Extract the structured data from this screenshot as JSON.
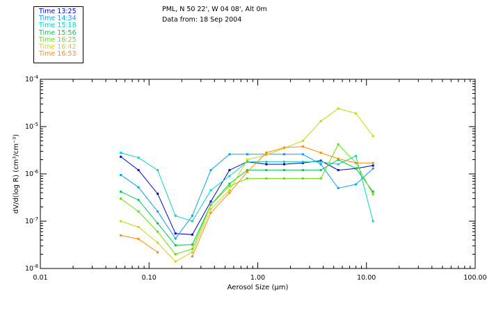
{
  "header": {
    "line1": "PML, N 50 22', W 04 08', Alt 0m",
    "line2": "Data from: 18 Sep 2004"
  },
  "chart_data": {
    "type": "line",
    "xlabel": "Aerosol Size (μm)",
    "ylabel": "dV/d(log R) (cm³/cm⁻³)",
    "xscale": "log",
    "yscale": "log",
    "xlim": [
      0.01,
      100
    ],
    "ylim": [
      1e-08,
      0.0001
    ],
    "x_ticks": [
      0.01,
      0.1,
      1,
      10,
      100
    ],
    "x_tick_labels": [
      "0.01",
      "0.10",
      "1.00",
      "10.00",
      "100.00"
    ],
    "y_ticks": [
      1e-08,
      1e-07,
      1e-06,
      1e-05,
      0.0001
    ],
    "y_tick_labels": [
      {
        "base": "10",
        "exp": "-8"
      },
      {
        "base": "10",
        "exp": "-7"
      },
      {
        "base": "10",
        "exp": "-6"
      },
      {
        "base": "10",
        "exp": "-5"
      },
      {
        "base": "10",
        "exp": "-4"
      }
    ],
    "grid": false,
    "legend_position": "top-left",
    "x": [
      0.055,
      0.08,
      0.12,
      0.175,
      0.25,
      0.37,
      0.55,
      0.8,
      1.2,
      1.75,
      2.6,
      3.8,
      5.5,
      8.0,
      11.5
    ],
    "series": [
      {
        "name": "Time 13:25",
        "color": "#0000c8",
        "values": [
          2.3e-06,
          1.2e-06,
          3.8e-07,
          5.5e-08,
          5.2e-08,
          2.6e-07,
          1.2e-06,
          1.8e-06,
          1.6e-06,
          1.6e-06,
          1.7e-06,
          1.9e-06,
          1.2e-06,
          1.3e-06,
          1.5e-06
        ]
      },
      {
        "name": "Time 14:34",
        "color": "#00a0ff",
        "values": [
          9.5e-07,
          5.2e-07,
          1.6e-07,
          4.3e-08,
          1.3e-07,
          1.2e-06,
          2.6e-06,
          2.6e-06,
          2.6e-06,
          2.6e-06,
          2.6e-06,
          1.6e-06,
          5e-07,
          6e-07,
          1.3e-06
        ]
      },
      {
        "name": "Time 15:18",
        "color": "#00d8c0",
        "values": [
          2.8e-06,
          2.2e-06,
          1.2e-06,
          1.3e-07,
          1e-07,
          4.5e-07,
          9e-07,
          1.8e-06,
          1.8e-06,
          1.8e-06,
          1.8e-06,
          1.8e-06,
          1.6e-06,
          2.4e-06,
          1e-07
        ]
      },
      {
        "name": "Time 15:56",
        "color": "#00c850",
        "values": [
          4.2e-07,
          2.8e-07,
          9e-08,
          3.1e-08,
          3.2e-08,
          2.2e-07,
          6.2e-07,
          1.2e-06,
          1.2e-06,
          1.2e-06,
          1.2e-06,
          1.2e-06,
          2e-06,
          1.3e-06,
          4.2e-07
        ]
      },
      {
        "name": "Time 16:25",
        "color": "#60e000",
        "values": [
          3e-07,
          1.6e-07,
          6e-08,
          2e-08,
          2.6e-08,
          2.2e-07,
          5.5e-07,
          8e-07,
          8e-07,
          8e-07,
          8e-07,
          8e-07,
          4.2e-06,
          1.7e-06,
          3.7e-07
        ]
      },
      {
        "name": "Time 16:42",
        "color": "#c8d800",
        "values": [
          1e-07,
          7.5e-08,
          3.5e-08,
          1.4e-08,
          2.2e-08,
          1.8e-07,
          4.5e-07,
          2e-06,
          2.5e-06,
          3.5e-06,
          5e-06,
          1.3e-05,
          2.4e-05,
          1.9e-05,
          6.3e-06
        ]
      },
      {
        "name": "Time 16:53",
        "color": "#ff8c00",
        "values": [
          5e-08,
          4.2e-08,
          2.2e-08,
          null,
          1.8e-08,
          1.5e-07,
          4e-07,
          1.1e-06,
          2.8e-06,
          3.6e-06,
          3.8e-06,
          2.8e-06,
          2.1e-06,
          1.7e-06,
          1.7e-06
        ]
      }
    ]
  }
}
